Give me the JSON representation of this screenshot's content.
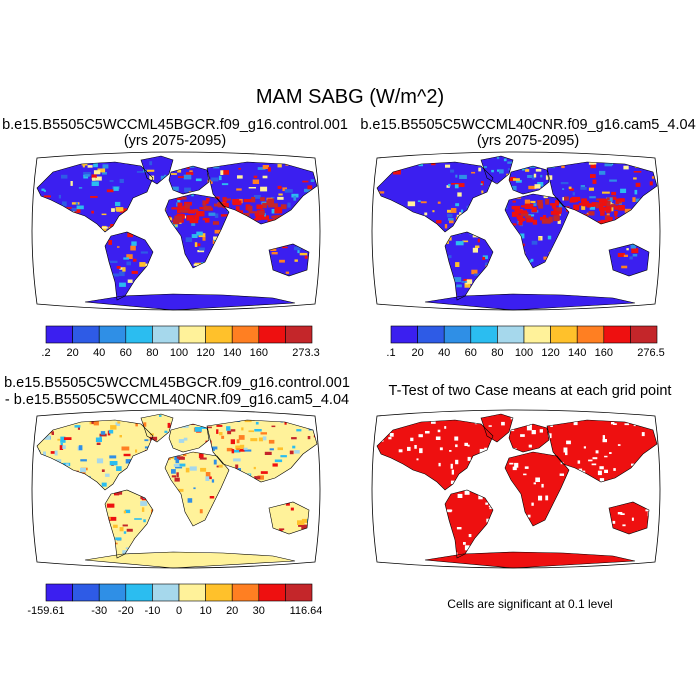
{
  "main_title": "MAM SABG (W/m^2)",
  "panels": [
    {
      "id": "control",
      "title_lines": [
        "b.e15.B5505C5WCCML45BGCR.f09_g16.control.001",
        "(yrs 2075-2095)"
      ],
      "colorbar": {
        "colors": [
          "#3b1ff0",
          "#2e5be6",
          "#2f8fe6",
          "#2bbdf0",
          "#a6d8ec",
          "#fff29a",
          "#ffc12b",
          "#ff7f22",
          "#ee1010",
          "#c4262a"
        ],
        "labels": [
          ".2",
          "20",
          "40",
          "60",
          "80",
          "100",
          "120",
          "140",
          "160",
          "273.3"
        ]
      }
    },
    {
      "id": "cam5",
      "title_lines": [
        "b.e15.B5505C5WCCML40CNR.f09_g16.cam5_4.04",
        "(yrs 2075-2095)"
      ],
      "colorbar": {
        "colors": [
          "#3b1ff0",
          "#2e5be6",
          "#2f8fe6",
          "#2bbdf0",
          "#a6d8ec",
          "#fff29a",
          "#ffc12b",
          "#ff7f22",
          "#ee1010",
          "#c4262a"
        ],
        "labels": [
          ".1",
          "20",
          "40",
          "60",
          "80",
          "100",
          "120",
          "140",
          "160",
          "276.5"
        ]
      }
    },
    {
      "id": "difference",
      "title_lines": [
        "b.e15.B5505C5WCCML45BGCR.f09_g16.control.001",
        "- b.e15.B5505C5WCCML40CNR.f09_g16.cam5_4.04"
      ],
      "colorbar": {
        "colors": [
          "#3b1ff0",
          "#2e5be6",
          "#2f8fe6",
          "#2bbdf0",
          "#a6d8ec",
          "#fff29a",
          "#ffc12b",
          "#ff7f22",
          "#ee1010",
          "#c4262a"
        ],
        "labels": [
          "-159.61",
          "-30",
          "-20",
          "-10",
          "0",
          "10",
          "20",
          "30",
          "116.64"
        ]
      }
    },
    {
      "id": "ttest",
      "title_lines": [
        "T-Test of two Case means at each grid point"
      ],
      "footnote": "Cells are significant at 0.1 level"
    }
  ]
}
